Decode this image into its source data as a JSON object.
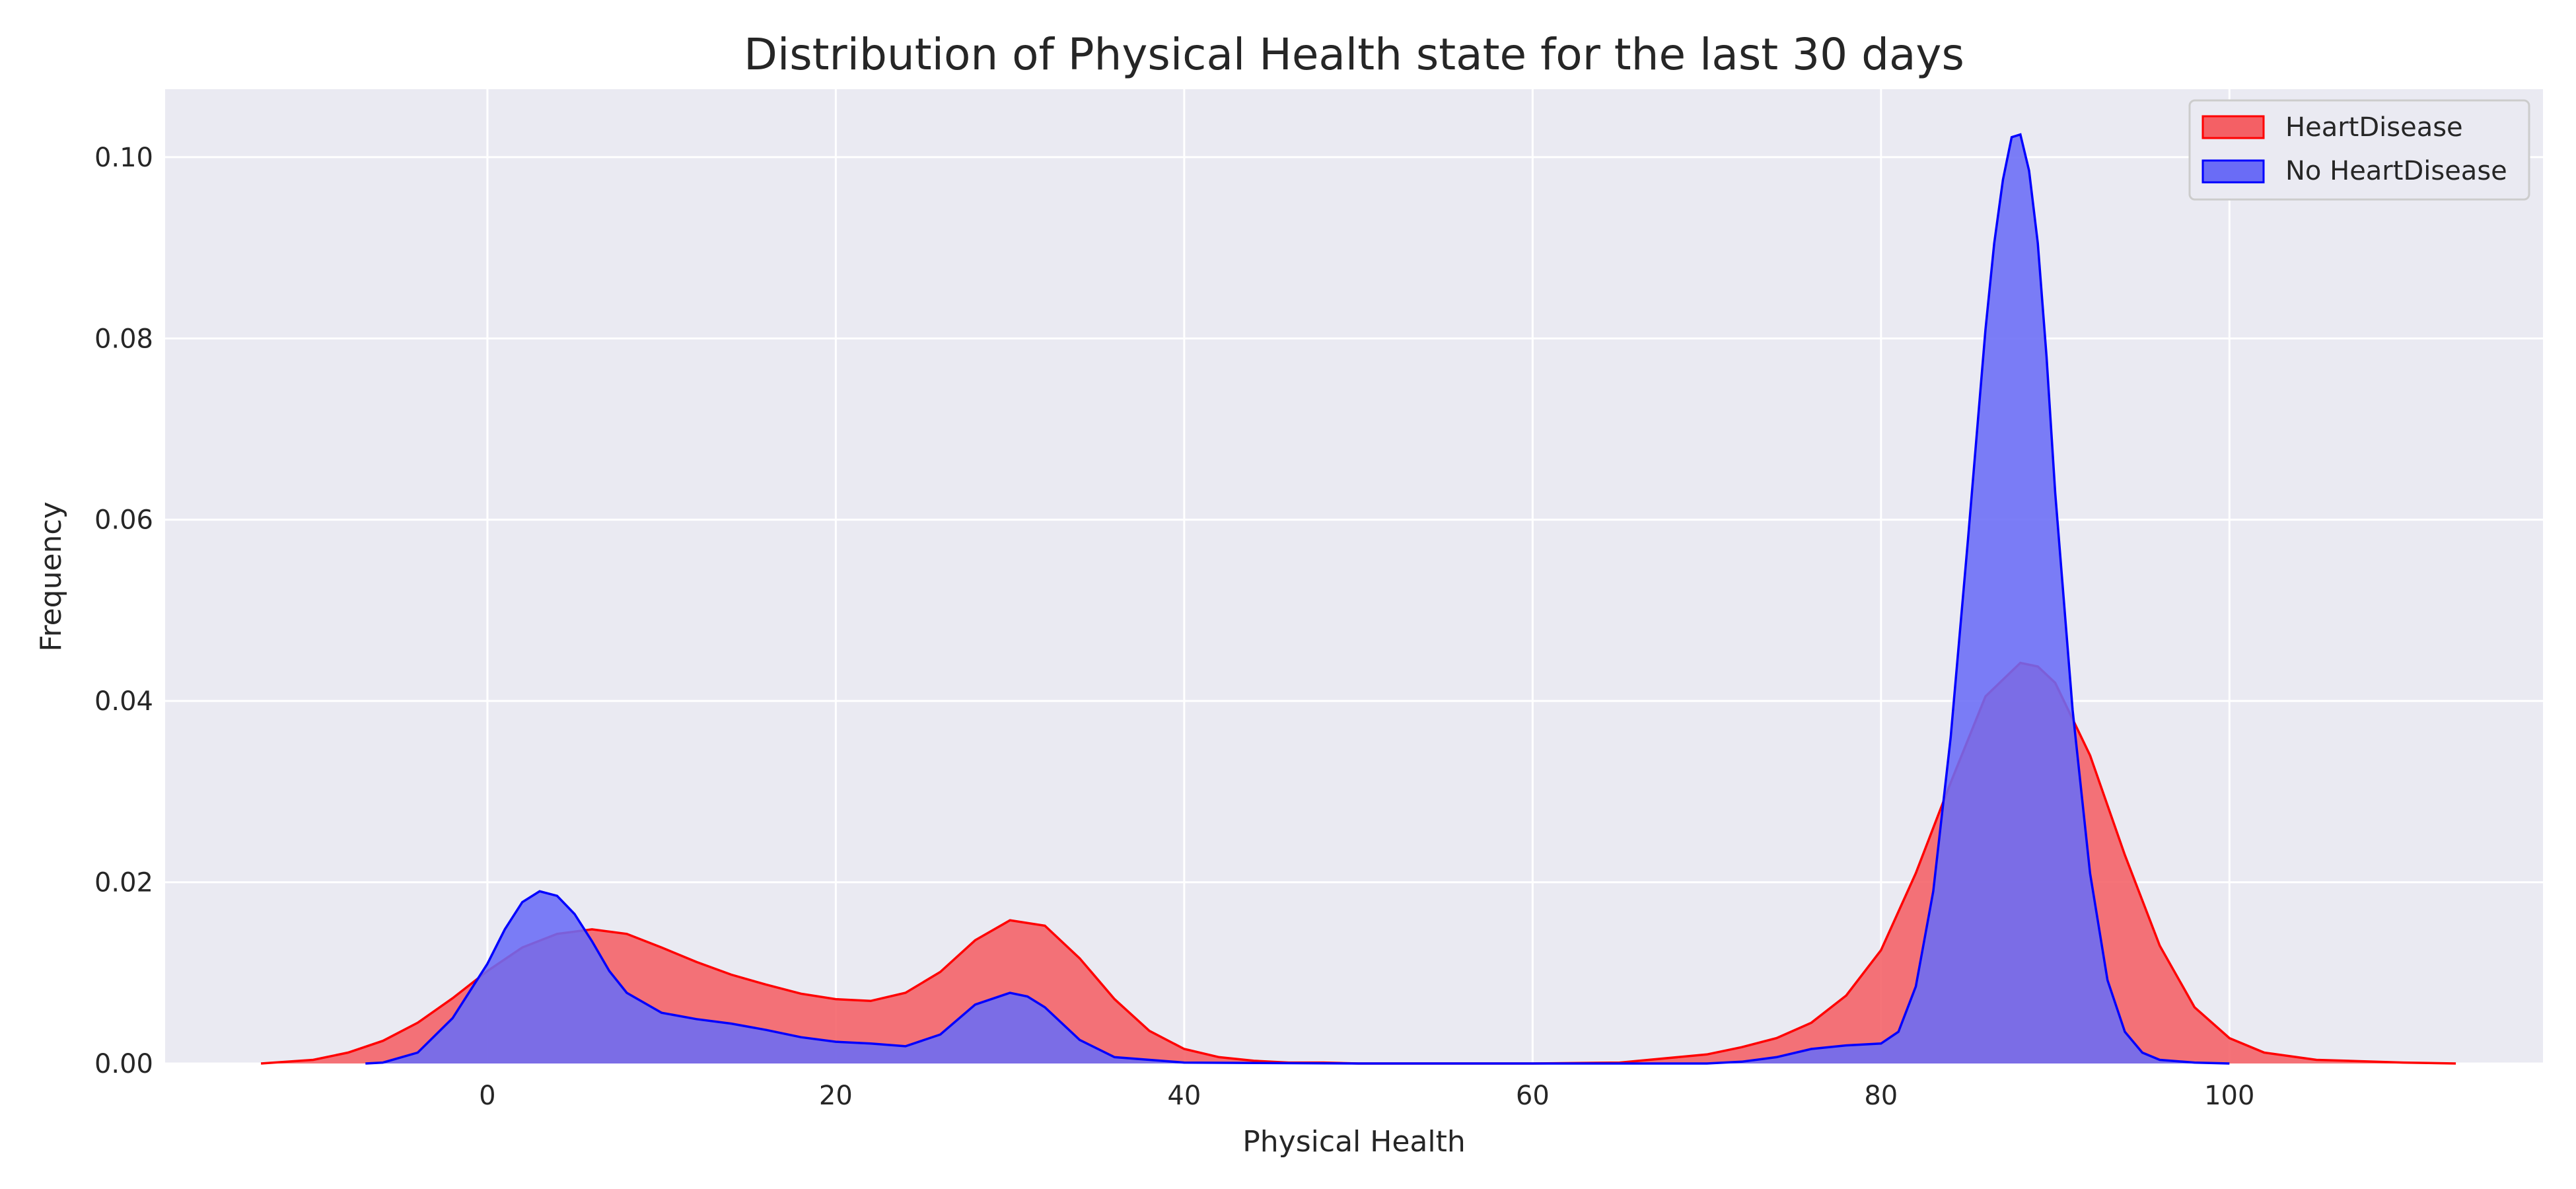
{
  "chart_data": {
    "type": "area",
    "title": "Distribution of Physical Health state for the last 30 days",
    "xlabel": "Physical Health",
    "ylabel": "Frequency",
    "xlim": [
      -18.5,
      118
    ],
    "ylim": [
      0,
      0.1075
    ],
    "x_ticks": [
      0,
      20,
      40,
      60,
      80,
      100
    ],
    "y_ticks": [
      0.0,
      0.02,
      0.04,
      0.06,
      0.08,
      0.1
    ],
    "x_tick_labels": [
      "0",
      "20",
      "40",
      "60",
      "80",
      "100"
    ],
    "y_tick_labels": [
      "0.00",
      "0.02",
      "0.04",
      "0.06",
      "0.08",
      "0.10"
    ],
    "grid": true,
    "legend_position": "top-right",
    "legend": [
      "HeartDisease",
      "No HeartDisease"
    ],
    "series": [
      {
        "name": "HeartDisease",
        "color": "#ff0000",
        "fill": "#f46065",
        "x": [
          -13,
          -10,
          -8,
          -6,
          -4,
          -2,
          0,
          2,
          4,
          6,
          8,
          10,
          12,
          14,
          16,
          18,
          20,
          22,
          24,
          26,
          28,
          30,
          32,
          34,
          36,
          38,
          40,
          42,
          44,
          46,
          48,
          50,
          55,
          60,
          65,
          70,
          72,
          74,
          76,
          78,
          80,
          82,
          84,
          86,
          88,
          89,
          90,
          92,
          94,
          96,
          98,
          100,
          102,
          105,
          110,
          113
        ],
        "y": [
          0,
          0.0004,
          0.0012,
          0.0025,
          0.0045,
          0.0072,
          0.0102,
          0.0128,
          0.0143,
          0.0148,
          0.0143,
          0.0128,
          0.0112,
          0.0098,
          0.0087,
          0.0077,
          0.0071,
          0.0069,
          0.0078,
          0.0101,
          0.0136,
          0.0158,
          0.0152,
          0.0116,
          0.0071,
          0.0036,
          0.0016,
          0.0007,
          0.0003,
          0.0001,
          0.0001,
          0,
          0,
          0,
          0.0001,
          0.001,
          0.0018,
          0.0028,
          0.0045,
          0.0075,
          0.0125,
          0.021,
          0.031,
          0.0405,
          0.0442,
          0.0438,
          0.042,
          0.034,
          0.023,
          0.013,
          0.0062,
          0.0028,
          0.0012,
          0.0004,
          0.0001,
          0
        ]
      },
      {
        "name": "No HeartDisease",
        "color": "#0000ff",
        "fill": "#6a6cf6",
        "x": [
          -7,
          -6,
          -4,
          -2,
          0,
          1,
          2,
          3,
          4,
          5,
          6,
          7,
          8,
          10,
          12,
          14,
          16,
          18,
          20,
          22,
          24,
          26,
          28,
          30,
          31,
          32,
          34,
          36,
          40,
          50,
          60,
          70,
          72,
          74,
          76,
          78,
          80,
          81,
          82,
          83,
          84,
          85,
          86,
          86.5,
          87,
          87.5,
          88,
          88.5,
          89,
          89.5,
          90,
          91,
          92,
          93,
          94,
          95,
          96,
          98,
          100
        ],
        "y": [
          0,
          0.0001,
          0.0012,
          0.005,
          0.011,
          0.0148,
          0.0178,
          0.019,
          0.0185,
          0.0165,
          0.0135,
          0.0102,
          0.0078,
          0.0056,
          0.0049,
          0.0044,
          0.0037,
          0.0029,
          0.0024,
          0.0022,
          0.0019,
          0.0032,
          0.0065,
          0.0078,
          0.0074,
          0.0062,
          0.0026,
          0.0007,
          0.0001,
          0,
          0,
          0,
          0.0002,
          0.0007,
          0.0016,
          0.002,
          0.0022,
          0.0035,
          0.0085,
          0.019,
          0.036,
          0.058,
          0.081,
          0.0905,
          0.0975,
          0.1022,
          0.1025,
          0.0985,
          0.0905,
          0.078,
          0.063,
          0.039,
          0.021,
          0.0092,
          0.0035,
          0.0012,
          0.0004,
          0.0001,
          0
        ]
      }
    ]
  }
}
